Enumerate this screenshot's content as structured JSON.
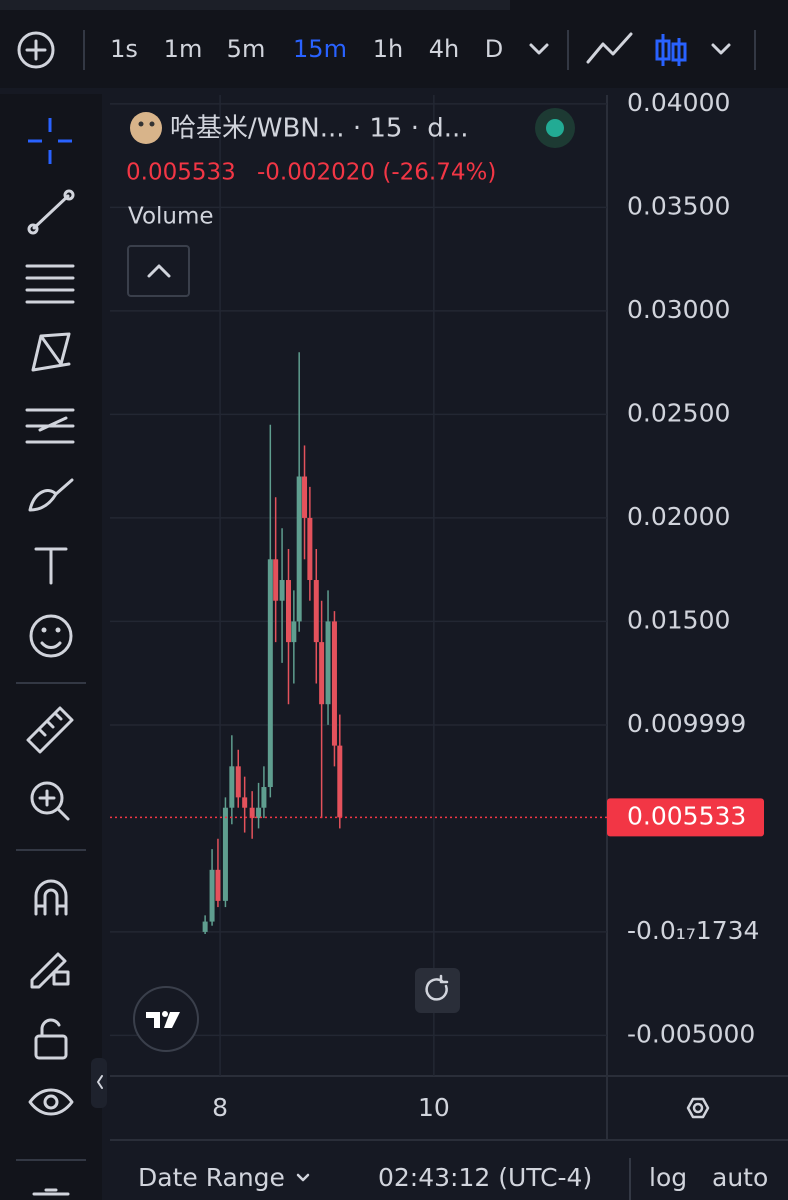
{
  "toolbar": {
    "intervals": [
      "1s",
      "1m",
      "5m",
      "15m",
      "1h",
      "4h",
      "D"
    ],
    "active": "15m"
  },
  "legend": {
    "symbol": "哈基米/WBN... · 15 · d...",
    "change": "-0.002020 (-26.74%)",
    "volume": "Volume"
  },
  "chart_data": {
    "type": "candlestick",
    "x": [
      7.86,
      7.925,
      7.98,
      8.05,
      8.11,
      8.17,
      8.23,
      8.3,
      8.36,
      8.41,
      8.47,
      8.52,
      8.58,
      8.64,
      8.69,
      8.74,
      8.79,
      8.84,
      8.9,
      8.95,
      9.01,
      9.07,
      9.12
    ],
    "open": [
      0,
      0.0005,
      0.003,
      0.0015,
      0.006,
      0.008,
      0.0065,
      0.006,
      0.0055,
      0.006,
      0.007,
      0.018,
      0.016,
      0.017,
      0.014,
      0.015,
      0.022,
      0.02,
      0.017,
      0.014,
      0.011,
      0.015,
      0.009
    ],
    "high": [
      0.0008,
      0.004,
      0.0045,
      0.0065,
      0.0095,
      0.0088,
      0.0075,
      0.0068,
      0.0072,
      0.008,
      0.0245,
      0.021,
      0.0195,
      0.0185,
      0.0165,
      0.028,
      0.0235,
      0.0215,
      0.0185,
      0.016,
      0.0165,
      0.0155,
      0.0105
    ],
    "low": [
      -0.0001,
      0.0003,
      0.0012,
      0.0012,
      0.0052,
      0.006,
      0.0048,
      0.0045,
      0.005,
      0.0055,
      0.0065,
      0.014,
      0.013,
      0.011,
      0.012,
      0.0145,
      0.018,
      0.016,
      0.012,
      0.0055,
      0.01,
      0.008,
      0.005
    ],
    "close": [
      0.0005,
      0.003,
      0.0015,
      0.006,
      0.008,
      0.0065,
      0.006,
      0.0055,
      0.006,
      0.007,
      0.018,
      0.016,
      0.017,
      0.014,
      0.015,
      0.022,
      0.02,
      0.017,
      0.014,
      0.011,
      0.015,
      0.009,
      0.005533
    ],
    "xlim": [
      6.97,
      11.62
    ],
    "xticks": [
      8,
      10
    ],
    "ylim": [
      -0.00696,
      0.04043
    ],
    "yticks": [
      {
        "value": 0.04,
        "label": "0.04000"
      },
      {
        "value": 0.035,
        "label": "0.03500"
      },
      {
        "value": 0.03,
        "label": "0.03000"
      },
      {
        "value": 0.025,
        "label": "0.02500"
      },
      {
        "value": 0.02,
        "label": "0.02000"
      },
      {
        "value": 0.015,
        "label": "0.01500"
      },
      0.009999,
      {
        "value": -1.734e-18,
        "label": "-0.0₁₇1734"
      },
      {
        "value": -0.005,
        "label": "-0.005000"
      }
    ],
    "last_price": 0.005533,
    "grid": true,
    "up_color": "#5f9e8f",
    "down_color": "#e4525c",
    "price_color": "#f23645"
  },
  "footer": {
    "date_range": "Date Range",
    "time": "02:43:12 (UTC-4)",
    "log": "log",
    "auto": "auto"
  }
}
